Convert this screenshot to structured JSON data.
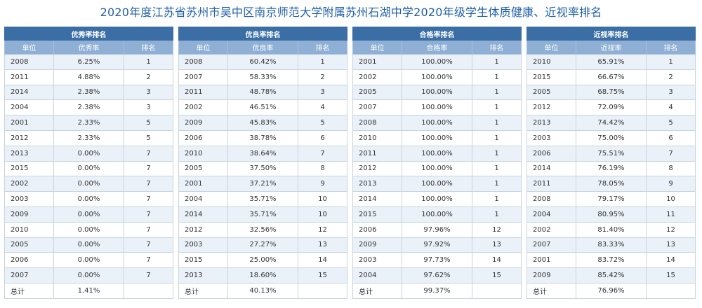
{
  "title": "2020年度江苏省苏州市吴中区南京师范大学附属苏州石湖中学2020年级学生体质健康、近视率排名",
  "tables": [
    {
      "section": "优秀率排名",
      "headers": [
        "单位",
        "优秀率",
        "排名"
      ],
      "rows": [
        [
          "2008",
          "6.25%",
          "1"
        ],
        [
          "2011",
          "4.88%",
          "2"
        ],
        [
          "2014",
          "2.38%",
          "3"
        ],
        [
          "2004",
          "2.38%",
          "3"
        ],
        [
          "2001",
          "2.33%",
          "5"
        ],
        [
          "2012",
          "2.33%",
          "5"
        ],
        [
          "2013",
          "0.00%",
          "7"
        ],
        [
          "2015",
          "0.00%",
          "7"
        ],
        [
          "2002",
          "0.00%",
          "7"
        ],
        [
          "2003",
          "0.00%",
          "7"
        ],
        [
          "2009",
          "0.00%",
          "7"
        ],
        [
          "2010",
          "0.00%",
          "7"
        ],
        [
          "2005",
          "0.00%",
          "7"
        ],
        [
          "2006",
          "0.00%",
          "7"
        ],
        [
          "2007",
          "0.00%",
          "7"
        ]
      ],
      "total": [
        "总计",
        "1.41%",
        ""
      ]
    },
    {
      "section": "优良率排名",
      "headers": [
        "单位",
        "优良率",
        "排名"
      ],
      "rows": [
        [
          "2008",
          "60.42%",
          "1"
        ],
        [
          "2007",
          "58.33%",
          "2"
        ],
        [
          "2011",
          "48.78%",
          "3"
        ],
        [
          "2002",
          "46.51%",
          "4"
        ],
        [
          "2009",
          "45.83%",
          "5"
        ],
        [
          "2006",
          "38.78%",
          "6"
        ],
        [
          "2010",
          "38.64%",
          "7"
        ],
        [
          "2005",
          "37.50%",
          "8"
        ],
        [
          "2001",
          "37.21%",
          "9"
        ],
        [
          "2004",
          "35.71%",
          "10"
        ],
        [
          "2014",
          "35.71%",
          "10"
        ],
        [
          "2012",
          "32.56%",
          "12"
        ],
        [
          "2003",
          "27.27%",
          "13"
        ],
        [
          "2015",
          "25.00%",
          "14"
        ],
        [
          "2013",
          "18.60%",
          "15"
        ]
      ],
      "total": [
        "总计",
        "40.13%",
        ""
      ]
    },
    {
      "section": "合格率排名",
      "headers": [
        "单位",
        "合格率",
        "排名"
      ],
      "rows": [
        [
          "2001",
          "100.00%",
          "1"
        ],
        [
          "2002",
          "100.00%",
          "1"
        ],
        [
          "2005",
          "100.00%",
          "1"
        ],
        [
          "2007",
          "100.00%",
          "1"
        ],
        [
          "2008",
          "100.00%",
          "1"
        ],
        [
          "2010",
          "100.00%",
          "1"
        ],
        [
          "2011",
          "100.00%",
          "1"
        ],
        [
          "2012",
          "100.00%",
          "1"
        ],
        [
          "2013",
          "100.00%",
          "1"
        ],
        [
          "2014",
          "100.00%",
          "1"
        ],
        [
          "2015",
          "100.00%",
          "1"
        ],
        [
          "2006",
          "97.96%",
          "12"
        ],
        [
          "2009",
          "97.92%",
          "13"
        ],
        [
          "2003",
          "97.73%",
          "14"
        ],
        [
          "2004",
          "97.62%",
          "15"
        ]
      ],
      "total": [
        "总计",
        "99.37%",
        ""
      ]
    },
    {
      "section": "近视率排名",
      "headers": [
        "单位",
        "近视率",
        "排名"
      ],
      "rows": [
        [
          "2010",
          "65.91%",
          "1"
        ],
        [
          "2015",
          "66.67%",
          "2"
        ],
        [
          "2005",
          "68.75%",
          "3"
        ],
        [
          "2012",
          "72.09%",
          "4"
        ],
        [
          "2013",
          "74.42%",
          "5"
        ],
        [
          "2003",
          "75.00%",
          "6"
        ],
        [
          "2006",
          "75.51%",
          "7"
        ],
        [
          "2014",
          "76.19%",
          "8"
        ],
        [
          "2011",
          "78.05%",
          "9"
        ],
        [
          "2008",
          "79.17%",
          "10"
        ],
        [
          "2004",
          "80.95%",
          "11"
        ],
        [
          "2002",
          "81.40%",
          "12"
        ],
        [
          "2007",
          "83.33%",
          "13"
        ],
        [
          "2001",
          "83.72%",
          "14"
        ],
        [
          "2009",
          "85.42%",
          "15"
        ]
      ],
      "total": [
        "总计",
        "76.96%",
        ""
      ]
    }
  ],
  "colors": {
    "title": "#1f5fa6",
    "section_header": "#3b6ea5",
    "column_header": "#8fb0d4",
    "stripe": "#eaf1f9"
  }
}
